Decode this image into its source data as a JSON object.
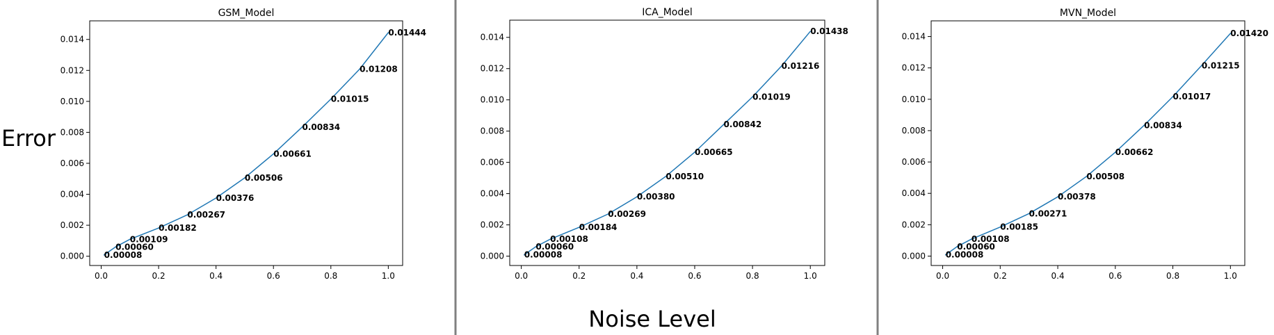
{
  "figure": {
    "ylabel": "Error",
    "xlabel": "Noise Level"
  },
  "chart_data": [
    {
      "type": "line",
      "title": "GSM_Model",
      "x": [
        0.01,
        0.05,
        0.1,
        0.2,
        0.3,
        0.4,
        0.5,
        0.6,
        0.7,
        0.8,
        0.9,
        1.0
      ],
      "series": [
        {
          "values": [
            8e-05,
            0.0006,
            0.00109,
            0.00182,
            0.00267,
            0.00376,
            0.00506,
            0.00661,
            0.00834,
            0.01015,
            0.01208,
            0.01444
          ]
        }
      ],
      "data_labels": [
        "0.00008",
        "0.00060",
        "0.00109",
        "0.00182",
        "0.00267",
        "0.00376",
        "0.00506",
        "0.00661",
        "0.00834",
        "0.01015",
        "0.01208",
        "0.01444"
      ],
      "xticks": [
        "0.0",
        "0.2",
        "0.4",
        "0.6",
        "0.8",
        "1.0"
      ],
      "yticks": [
        "0.000",
        "0.002",
        "0.004",
        "0.006",
        "0.008",
        "0.010",
        "0.012",
        "0.014"
      ],
      "xlim": [
        -0.04,
        1.05
      ],
      "ylim": [
        -0.0006,
        0.0152
      ],
      "line_color": "#1f77b4"
    },
    {
      "type": "line",
      "title": "ICA_Model",
      "x": [
        0.01,
        0.05,
        0.1,
        0.2,
        0.3,
        0.4,
        0.5,
        0.6,
        0.7,
        0.8,
        0.9,
        1.0
      ],
      "series": [
        {
          "values": [
            8e-05,
            0.0006,
            0.00108,
            0.00184,
            0.00269,
            0.0038,
            0.0051,
            0.00665,
            0.00842,
            0.01019,
            0.01216,
            0.01438
          ]
        }
      ],
      "data_labels": [
        "0.00008",
        "0.00060",
        "0.00108",
        "0.00184",
        "0.00269",
        "0.00380",
        "0.00510",
        "0.00665",
        "0.00842",
        "0.01019",
        "0.01216",
        "0.01438"
      ],
      "xticks": [
        "0.0",
        "0.2",
        "0.4",
        "0.6",
        "0.8",
        "1.0"
      ],
      "yticks": [
        "0.000",
        "0.002",
        "0.004",
        "0.006",
        "0.008",
        "0.010",
        "0.012",
        "0.014"
      ],
      "xlim": [
        -0.04,
        1.05
      ],
      "ylim": [
        -0.0006,
        0.0151
      ],
      "line_color": "#1f77b4"
    },
    {
      "type": "line",
      "title": "MVN_Model",
      "x": [
        0.01,
        0.05,
        0.1,
        0.2,
        0.3,
        0.4,
        0.5,
        0.6,
        0.7,
        0.8,
        0.9,
        1.0
      ],
      "series": [
        {
          "values": [
            8e-05,
            0.0006,
            0.00108,
            0.00185,
            0.00271,
            0.00378,
            0.00508,
            0.00662,
            0.00834,
            0.01017,
            0.01215,
            0.0142
          ]
        }
      ],
      "data_labels": [
        "0.00008",
        "0.00060",
        "0.00108",
        "0.00185",
        "0.00271",
        "0.00378",
        "0.00508",
        "0.00662",
        "0.00834",
        "0.01017",
        "0.01215",
        "0.01420"
      ],
      "xticks": [
        "0.0",
        "0.2",
        "0.4",
        "0.6",
        "0.8",
        "1.0"
      ],
      "yticks": [
        "0.000",
        "0.002",
        "0.004",
        "0.006",
        "0.008",
        "0.010",
        "0.012",
        "0.014"
      ],
      "xlim": [
        -0.04,
        1.05
      ],
      "ylim": [
        -0.0006,
        0.015
      ],
      "line_color": "#1f77b4"
    }
  ]
}
